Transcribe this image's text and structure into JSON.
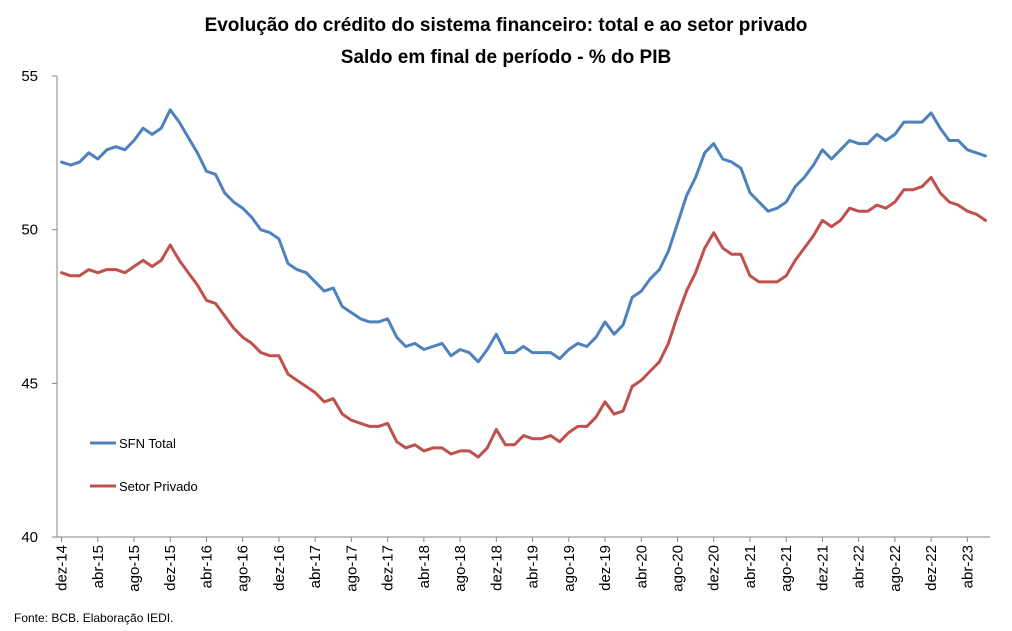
{
  "chart_data": {
    "type": "line",
    "title": "Evolução do crédito do sistema financeiro: total e ao setor privado",
    "subtitle": "Saldo em final de período -  % do PIB",
    "source_note": "Fonte: BCB. Elaboração IEDI.",
    "xlabel": "",
    "ylabel": "",
    "ylim": [
      40,
      55
    ],
    "y_ticks": [
      "40",
      "45",
      "50",
      "55"
    ],
    "x_tick_labels": [
      "dez-14",
      "abr-15",
      "ago-15",
      "dez-15",
      "abr-16",
      "ago-16",
      "dez-16",
      "abr-17",
      "ago-17",
      "dez-17",
      "abr-18",
      "ago-18",
      "dez-18",
      "abr-19",
      "ago-19",
      "dez-19",
      "abr-20",
      "ago-20",
      "dez-20",
      "abr-21",
      "ago-21",
      "dez-21",
      "abr-22",
      "ago-22",
      "dez-22",
      "abr-23"
    ],
    "grid": false,
    "legend_position": "left-lower",
    "x": [
      "dez-14",
      "jan-15",
      "fev-15",
      "mar-15",
      "abr-15",
      "mai-15",
      "jun-15",
      "jul-15",
      "ago-15",
      "set-15",
      "out-15",
      "nov-15",
      "dez-15",
      "jan-16",
      "fev-16",
      "mar-16",
      "abr-16",
      "mai-16",
      "jun-16",
      "jul-16",
      "ago-16",
      "set-16",
      "out-16",
      "nov-16",
      "dez-16",
      "jan-17",
      "fev-17",
      "mar-17",
      "abr-17",
      "mai-17",
      "jun-17",
      "jul-17",
      "ago-17",
      "set-17",
      "out-17",
      "nov-17",
      "dez-17",
      "jan-18",
      "fev-18",
      "mar-18",
      "abr-18",
      "mai-18",
      "jun-18",
      "jul-18",
      "ago-18",
      "set-18",
      "out-18",
      "nov-18",
      "dez-18",
      "jan-19",
      "fev-19",
      "mar-19",
      "abr-19",
      "mai-19",
      "jun-19",
      "jul-19",
      "ago-19",
      "set-19",
      "out-19",
      "nov-19",
      "dez-19",
      "jan-20",
      "fev-20",
      "mar-20",
      "abr-20",
      "mai-20",
      "jun-20",
      "jul-20",
      "ago-20",
      "set-20",
      "out-20",
      "nov-20",
      "dez-20",
      "jan-21",
      "fev-21",
      "mar-21",
      "abr-21",
      "mai-21",
      "jun-21",
      "jul-21",
      "ago-21",
      "set-21",
      "out-21",
      "nov-21",
      "dez-21",
      "jan-22",
      "fev-22",
      "mar-22",
      "abr-22",
      "mai-22",
      "jun-22",
      "jul-22",
      "ago-22",
      "set-22",
      "out-22",
      "nov-22",
      "dez-22",
      "jan-23",
      "fev-23",
      "mar-23",
      "abr-23",
      "mai-23",
      "jun-23"
    ],
    "series": [
      {
        "name": "SFN Total",
        "color": "#4f81bd",
        "values": [
          52.2,
          52.1,
          52.2,
          52.5,
          52.3,
          52.6,
          52.7,
          52.6,
          52.9,
          53.3,
          53.1,
          53.3,
          53.9,
          53.5,
          53.0,
          52.5,
          51.9,
          51.8,
          51.2,
          50.9,
          50.7,
          50.4,
          50.0,
          49.9,
          49.7,
          48.9,
          48.7,
          48.6,
          48.3,
          48.0,
          48.1,
          47.5,
          47.3,
          47.1,
          47.0,
          47.0,
          47.1,
          46.5,
          46.2,
          46.3,
          46.1,
          46.2,
          46.3,
          45.9,
          46.1,
          46.0,
          45.7,
          46.1,
          46.6,
          46.0,
          46.0,
          46.2,
          46.0,
          46.0,
          46.0,
          45.8,
          46.1,
          46.3,
          46.2,
          46.5,
          47.0,
          46.6,
          46.9,
          47.8,
          48.0,
          48.4,
          48.7,
          49.3,
          50.2,
          51.1,
          51.7,
          52.5,
          52.8,
          52.3,
          52.2,
          52.0,
          51.2,
          50.9,
          50.6,
          50.7,
          50.9,
          51.4,
          51.7,
          52.1,
          52.6,
          52.3,
          52.6,
          52.9,
          52.8,
          52.8,
          53.1,
          52.9,
          53.1,
          53.5,
          53.5,
          53.5,
          53.8,
          53.3,
          52.9,
          52.9,
          52.6,
          52.5,
          52.4
        ]
      },
      {
        "name": "Setor Privado",
        "color": "#c0504d",
        "values": [
          48.6,
          48.5,
          48.5,
          48.7,
          48.6,
          48.7,
          48.7,
          48.6,
          48.8,
          49.0,
          48.8,
          49.0,
          49.5,
          49.0,
          48.6,
          48.2,
          47.7,
          47.6,
          47.2,
          46.8,
          46.5,
          46.3,
          46.0,
          45.9,
          45.9,
          45.3,
          45.1,
          44.9,
          44.7,
          44.4,
          44.5,
          44.0,
          43.8,
          43.7,
          43.6,
          43.6,
          43.7,
          43.1,
          42.9,
          43.0,
          42.8,
          42.9,
          42.9,
          42.7,
          42.8,
          42.8,
          42.6,
          42.9,
          43.5,
          43.0,
          43.0,
          43.3,
          43.2,
          43.2,
          43.3,
          43.1,
          43.4,
          43.6,
          43.6,
          43.9,
          44.4,
          44.0,
          44.1,
          44.9,
          45.1,
          45.4,
          45.7,
          46.3,
          47.2,
          48.0,
          48.6,
          49.4,
          49.9,
          49.4,
          49.2,
          49.2,
          48.5,
          48.3,
          48.3,
          48.3,
          48.5,
          49.0,
          49.4,
          49.8,
          50.3,
          50.1,
          50.3,
          50.7,
          50.6,
          50.6,
          50.8,
          50.7,
          50.9,
          51.3,
          51.3,
          51.4,
          51.7,
          51.2,
          50.9,
          50.8,
          50.6,
          50.5,
          50.3
        ]
      }
    ]
  }
}
